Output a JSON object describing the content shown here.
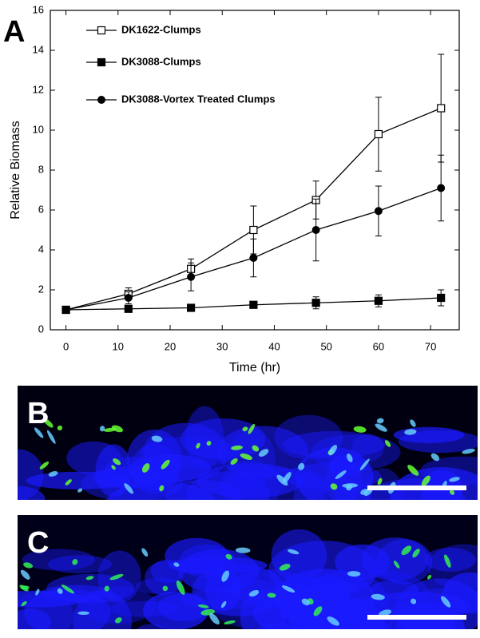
{
  "panel_labels": [
    "A",
    "B",
    "C"
  ],
  "chart_data": {
    "type": "line",
    "x_label": "Time (hr)",
    "y_label": "Relative Biomass",
    "x": [
      0,
      12,
      24,
      36,
      48,
      60,
      72
    ],
    "series": [
      {
        "name": "DK1622-Clumps",
        "color": "#000000",
        "marker": "open-square",
        "values": [
          1,
          1.8,
          3.05,
          5.0,
          6.5,
          9.8,
          11.1
        ],
        "errors": [
          0,
          0.3,
          0.5,
          1.2,
          0.95,
          1.85,
          2.7
        ]
      },
      {
        "name": "DK3088-Clumps",
        "color": "#000000",
        "marker": "square",
        "values": [
          1,
          1.05,
          1.1,
          1.25,
          1.35,
          1.45,
          1.6
        ],
        "errors": [
          0,
          0.1,
          0.1,
          0.1,
          0.3,
          0.3,
          0.4
        ]
      },
      {
        "name": "DK3088-Vortex Treated Clumps",
        "color": "#000000",
        "marker": "circle",
        "values": [
          1,
          1.6,
          2.65,
          3.6,
          5.0,
          5.95,
          7.1
        ],
        "errors": [
          0,
          0.3,
          0.7,
          0.95,
          1.55,
          1.25,
          1.65
        ]
      }
    ],
    "xlim": [
      -3,
      75.5
    ],
    "ylim": [
      0,
      16
    ],
    "xticks": [
      0,
      10,
      20,
      30,
      40,
      50,
      60,
      70
    ],
    "yticks": [
      0,
      2,
      4,
      6,
      8,
      10,
      12,
      14,
      16
    ],
    "legend": "upper-left",
    "grid": false
  }
}
